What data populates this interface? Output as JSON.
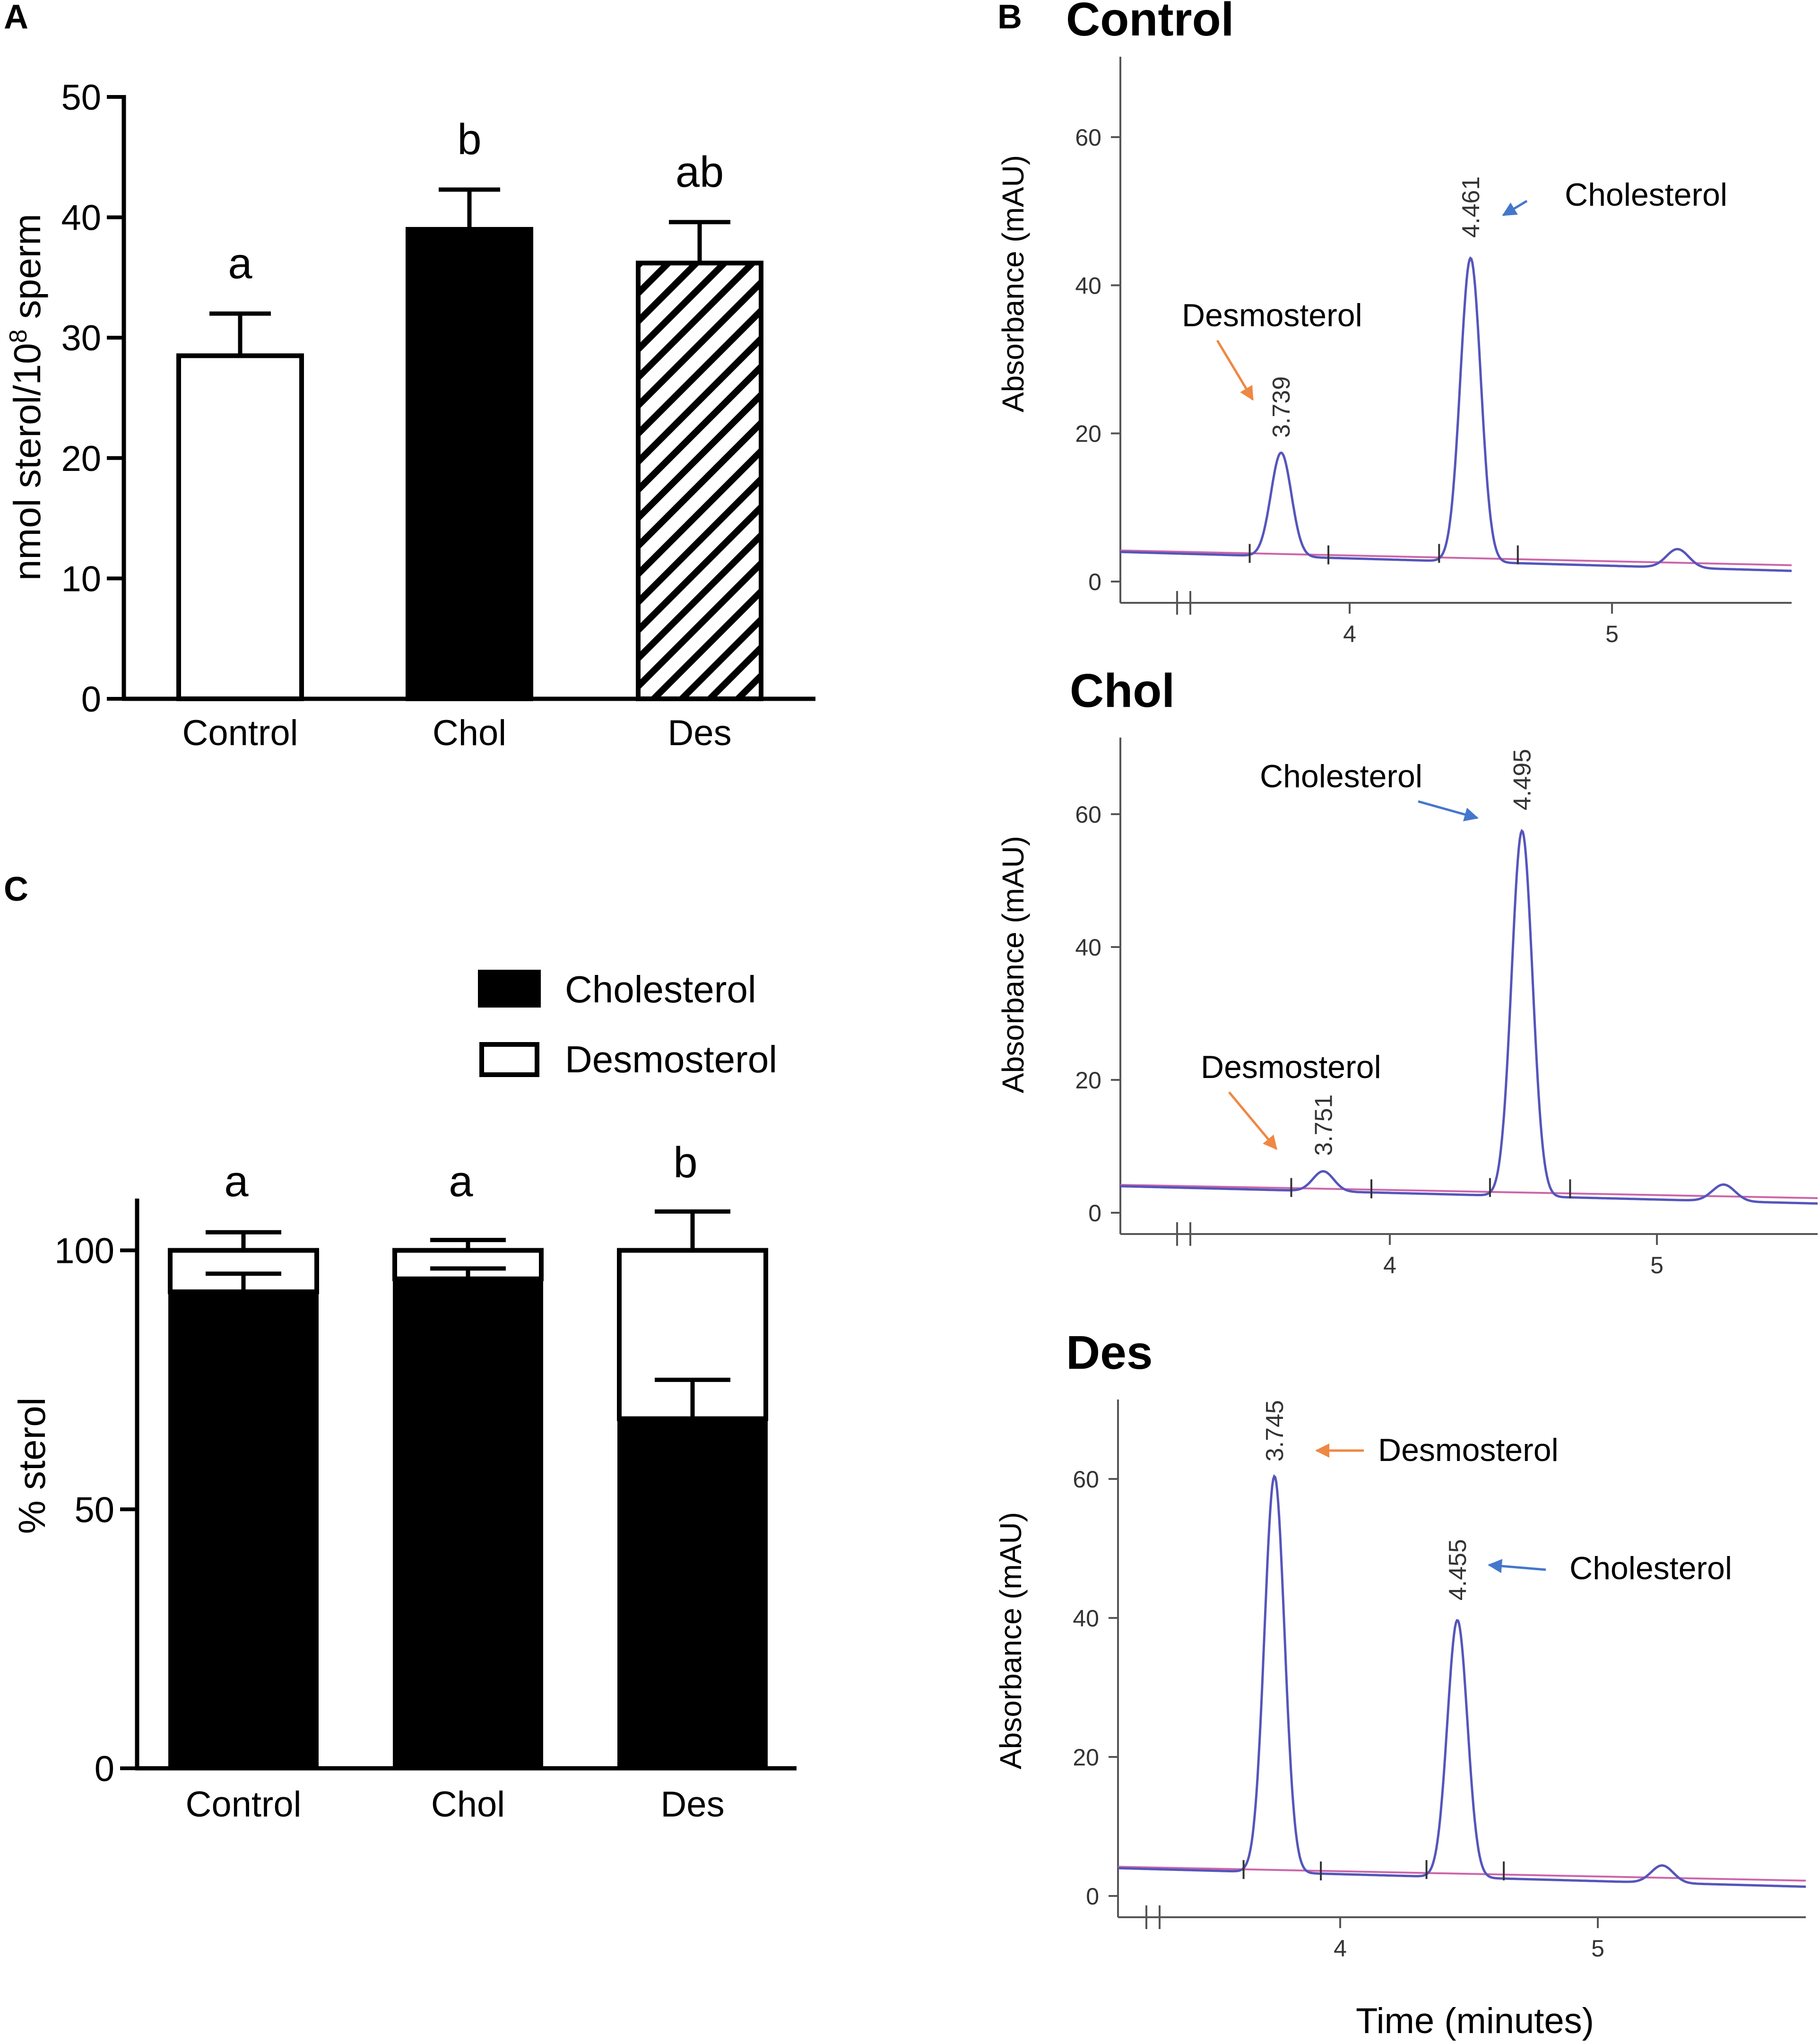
{
  "panels": {
    "a": "A",
    "b": "B",
    "c": "C"
  },
  "colors": {
    "black": "#000000",
    "white": "#ffffff",
    "trace": "#5555bb",
    "baseline": "#cc66aa",
    "orange": "#ee8844",
    "blue": "#4477cc"
  },
  "chart_data": [
    {
      "id": "panel-a",
      "type": "bar",
      "title": "",
      "xlabel": "",
      "ylabel": "nmol sterol/10⁸ sperm",
      "ylim": [
        0,
        50
      ],
      "yticks": [
        "0",
        "10",
        "20",
        "30",
        "40",
        "50"
      ],
      "categories": [
        "Control",
        "Chol",
        "Des"
      ],
      "values": [
        28.5,
        39,
        36.2
      ],
      "errors": [
        3.5,
        3.3,
        3.4
      ],
      "fills": [
        "white",
        "black",
        "hatched"
      ],
      "significance": [
        "a",
        "b",
        "ab"
      ]
    },
    {
      "id": "panel-c",
      "type": "bar",
      "stacked": true,
      "title": "",
      "xlabel": "",
      "ylabel": "% sterol",
      "ylim": [
        0,
        110
      ],
      "yticks": [
        "0",
        "50",
        "100"
      ],
      "categories": [
        "Control",
        "Chol",
        "Des"
      ],
      "series": [
        {
          "name": "Cholesterol",
          "values": [
            92,
            94.5,
            67.5
          ],
          "errors": [
            3.5,
            2,
            7.5
          ]
        },
        {
          "name": "Desmosterol",
          "values": [
            8,
            5.5,
            32.5
          ],
          "errors": [
            3.5,
            2,
            7.5
          ]
        }
      ],
      "significance": [
        "a",
        "a",
        "b"
      ],
      "legend": [
        "Cholesterol",
        "Desmosterol"
      ],
      "legend_position": "top-right"
    },
    {
      "id": "panel-b",
      "type": "line",
      "xlabel": "Time (minutes)",
      "ylabel": "Absorbance (mAU)",
      "chromatograms": [
        {
          "title": "Control",
          "yticks": [
            "0",
            "20",
            "40",
            "60"
          ],
          "xticks": [
            "4",
            "5"
          ],
          "peaks": [
            {
              "label": "3.739",
              "time": 3.739,
              "height": 18,
              "compound": "Desmosterol"
            },
            {
              "label": "4.461",
              "time": 4.461,
              "height": 45,
              "compound": "Cholesterol"
            }
          ],
          "annotations": [
            "Desmosterol",
            "Cholesterol"
          ]
        },
        {
          "title": "Chol",
          "yticks": [
            "0",
            "20",
            "40",
            "60"
          ],
          "xticks": [
            "4",
            "5"
          ],
          "peaks": [
            {
              "label": "3.751",
              "time": 3.751,
              "height": 7,
              "compound": "Desmosterol"
            },
            {
              "label": "4.495",
              "time": 4.495,
              "height": 59,
              "compound": "Cholesterol"
            }
          ],
          "annotations": [
            "Cholesterol",
            "Desmosterol"
          ]
        },
        {
          "title": "Des",
          "yticks": [
            "0",
            "20",
            "40",
            "60"
          ],
          "xticks": [
            "4",
            "5"
          ],
          "peaks": [
            {
              "label": "3.745",
              "time": 3.745,
              "height": 61,
              "compound": "Desmosterol"
            },
            {
              "label": "4.455",
              "time": 4.455,
              "height": 41,
              "compound": "Cholesterol"
            }
          ],
          "annotations": [
            "Desmosterol",
            "Cholesterol"
          ]
        }
      ]
    }
  ]
}
